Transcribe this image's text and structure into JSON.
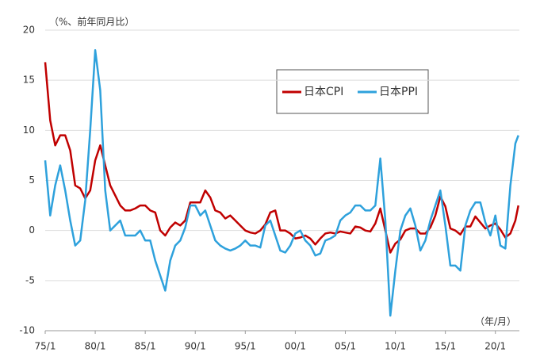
{
  "chart_data": {
    "type": "line",
    "y_axis_label": "（%、前年同月比）",
    "x_axis_label": "（年/月）",
    "x": [
      1975,
      1975.5,
      1976,
      1976.5,
      1977,
      1977.5,
      1978,
      1978.5,
      1979,
      1979.5,
      1980,
      1980.5,
      1981,
      1981.5,
      1982,
      1982.5,
      1983,
      1983.5,
      1984,
      1984.5,
      1985,
      1985.5,
      1986,
      1986.5,
      1987,
      1987.5,
      1988,
      1988.5,
      1989,
      1989.5,
      1990,
      1990.5,
      1991,
      1991.5,
      1992,
      1992.5,
      1993,
      1993.5,
      1994,
      1994.5,
      1995,
      1995.5,
      1996,
      1996.5,
      1997,
      1997.5,
      1998,
      1998.5,
      1999,
      1999.5,
      2000,
      2000.5,
      2001,
      2001.5,
      2002,
      2002.5,
      2003,
      2003.5,
      2004,
      2004.5,
      2005,
      2005.5,
      2006,
      2006.5,
      2007,
      2007.5,
      2008,
      2008.5,
      2009,
      2009.5,
      2010,
      2010.5,
      2011,
      2011.5,
      2012,
      2012.5,
      2013,
      2013.5,
      2014,
      2014.5,
      2015,
      2015.5,
      2016,
      2016.5,
      2017,
      2017.5,
      2018,
      2018.5,
      2019,
      2019.5,
      2020,
      2020.5,
      2021,
      2021.5,
      2022,
      2022.3
    ],
    "series": [
      {
        "name": "日本CPI",
        "color": "#c00000",
        "values": [
          16.8,
          11,
          8.5,
          9.5,
          9.5,
          8,
          4.5,
          4.2,
          3.2,
          4,
          7,
          8.5,
          6.5,
          4.5,
          3.5,
          2.5,
          2,
          2,
          2.2,
          2.5,
          2.5,
          2,
          1.8,
          0,
          -0.5,
          0.3,
          0.8,
          0.5,
          1,
          2.8,
          2.8,
          2.8,
          4,
          3.3,
          2,
          1.8,
          1.2,
          1.5,
          1,
          0.5,
          0,
          -0.2,
          -0.3,
          0,
          0.6,
          1.8,
          2,
          0,
          0,
          -0.3,
          -0.8,
          -0.7,
          -0.5,
          -0.8,
          -1.4,
          -0.8,
          -0.3,
          -0.2,
          -0.3,
          -0.1,
          -0.2,
          -0.3,
          0.4,
          0.3,
          0,
          -0.1,
          0.7,
          2.2,
          0,
          -2.2,
          -1.3,
          -0.9,
          0,
          0.2,
          0.2,
          -0.3,
          -0.3,
          0.3,
          1.5,
          3.4,
          2.4,
          0.2,
          0,
          -0.4,
          0.4,
          0.4,
          1.4,
          0.8,
          0.2,
          0.5,
          0.7,
          0.1,
          -0.7,
          -0.3,
          1.0,
          2.5
        ]
      },
      {
        "name": "日本PPI",
        "color": "#2ea1dc",
        "values": [
          7,
          1.5,
          4.5,
          6.5,
          4,
          1,
          -1.5,
          -1,
          3,
          10,
          18,
          14,
          4,
          0,
          0.5,
          1,
          -0.5,
          -0.5,
          -0.5,
          0,
          -1,
          -1,
          -3,
          -4.5,
          -6,
          -3,
          -1.5,
          -1,
          0.3,
          2.5,
          2.5,
          1.5,
          2,
          0.5,
          -1,
          -1.5,
          -1.8,
          -2,
          -1.8,
          -1.5,
          -1,
          -1.5,
          -1.5,
          -1.7,
          0.5,
          1,
          -0.5,
          -2,
          -2.2,
          -1.5,
          -0.3,
          0,
          -1,
          -1.5,
          -2.5,
          -2.3,
          -1,
          -0.8,
          -0.5,
          1,
          1.5,
          1.8,
          2.5,
          2.5,
          2,
          2,
          2.5,
          7.2,
          1,
          -8.5,
          -4,
          0,
          1.5,
          2.2,
          0.5,
          -2,
          -1,
          1,
          2.5,
          4,
          0.5,
          -3.5,
          -3.5,
          -4,
          0.5,
          2,
          2.8,
          2.8,
          0.8,
          -0.5,
          1.5,
          -1.5,
          -1.8,
          4.5,
          8.7,
          9.5
        ]
      }
    ],
    "xlim": [
      1975,
      2022.4
    ],
    "xticks": [
      {
        "value": 1975,
        "label": "75/1"
      },
      {
        "value": 1980,
        "label": "80/1"
      },
      {
        "value": 1985,
        "label": "85/1"
      },
      {
        "value": 1990,
        "label": "90/1"
      },
      {
        "value": 1995,
        "label": "95/1"
      },
      {
        "value": 2000,
        "label": "00/1"
      },
      {
        "value": 2005,
        "label": "05/1"
      },
      {
        "value": 2010,
        "label": "10/1"
      },
      {
        "value": 2015,
        "label": "15/1"
      },
      {
        "value": 2020,
        "label": "20/1"
      }
    ],
    "ylim": [
      -10,
      20
    ],
    "yticks": [
      -10,
      -5,
      0,
      5,
      10,
      15,
      20
    ],
    "grid": true
  }
}
